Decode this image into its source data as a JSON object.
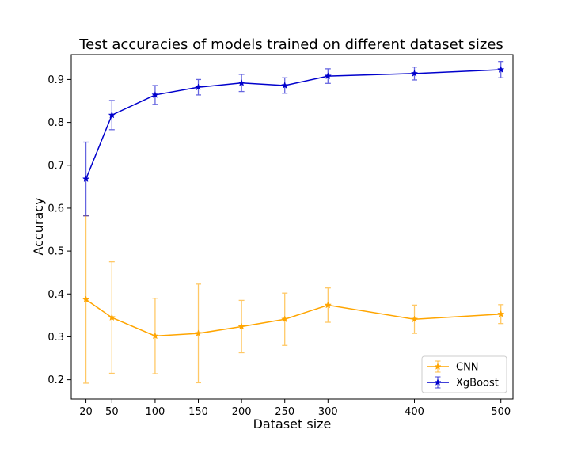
{
  "chart_data": {
    "type": "line",
    "title": "Test accuracies of models trained on different dataset sizes",
    "xlabel": "Dataset size",
    "ylabel": "Accuracy",
    "x": [
      20,
      50,
      100,
      150,
      200,
      250,
      300,
      400,
      500
    ],
    "xticks": [
      20,
      50,
      100,
      150,
      200,
      250,
      300,
      400,
      500
    ],
    "xlim": [
      3,
      514
    ],
    "yticks": [
      0.2,
      0.3,
      0.4,
      0.5,
      0.6,
      0.7,
      0.8,
      0.9
    ],
    "ylim": [
      0.155,
      0.958
    ],
    "legend_position": "lower-right",
    "series": [
      {
        "name": "CNN",
        "color": "#ffa500",
        "marker": "star",
        "values": [
          0.387,
          0.345,
          0.302,
          0.308,
          0.324,
          0.341,
          0.374,
          0.341,
          0.353
        ],
        "error": [
          0.195,
          0.13,
          0.088,
          0.115,
          0.061,
          0.061,
          0.04,
          0.033,
          0.022
        ]
      },
      {
        "name": "XgBoost",
        "color": "#0000cc",
        "marker": "star",
        "values": [
          0.668,
          0.817,
          0.864,
          0.882,
          0.892,
          0.886,
          0.908,
          0.914,
          0.923
        ],
        "error": [
          0.086,
          0.034,
          0.022,
          0.018,
          0.02,
          0.018,
          0.017,
          0.015,
          0.019
        ]
      }
    ]
  }
}
